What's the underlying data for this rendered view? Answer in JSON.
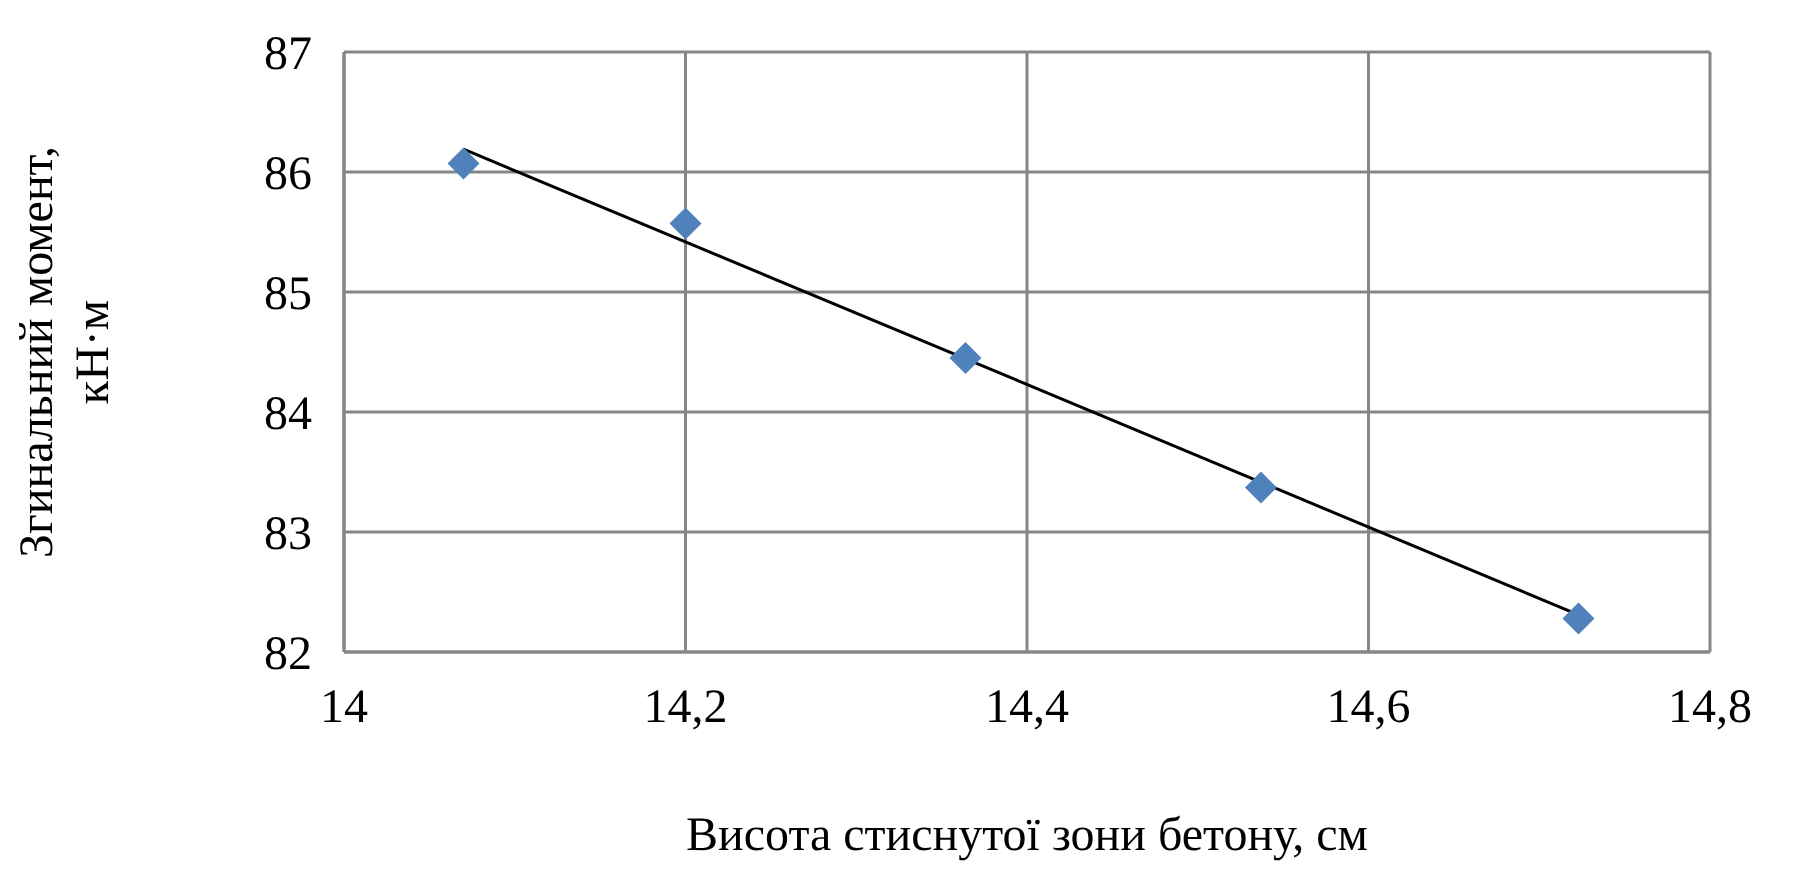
{
  "chart_data": {
    "type": "scatter",
    "xlabel": "Висота стиснутої зони бетону, см",
    "ylabel": "Згинальний момент, кН·м",
    "grid": true,
    "xlim": [
      14,
      14.8
    ],
    "xticks": [
      {
        "value": 14,
        "label": "14"
      },
      {
        "value": 14.2,
        "label": "14,2"
      },
      {
        "value": 14.4,
        "label": "14,4"
      },
      {
        "value": 14.6,
        "label": "14,6"
      },
      {
        "value": 14.8,
        "label": "14,8"
      }
    ],
    "ylim": [
      82,
      87
    ],
    "yticks": [
      82,
      83,
      84,
      85,
      86,
      87
    ],
    "series": [
      {
        "color": "#4f81bd",
        "marker": "diamond",
        "x": [
          14.07,
          14.2,
          14.364,
          14.537,
          14.723
        ],
        "values": [
          86.07,
          85.57,
          84.45,
          83.37,
          82.28
        ]
      },
      {
        "type": "line",
        "color": "#000000",
        "x": [
          14.07,
          14.723
        ],
        "values": [
          86.19,
          82.31
        ]
      }
    ]
  }
}
